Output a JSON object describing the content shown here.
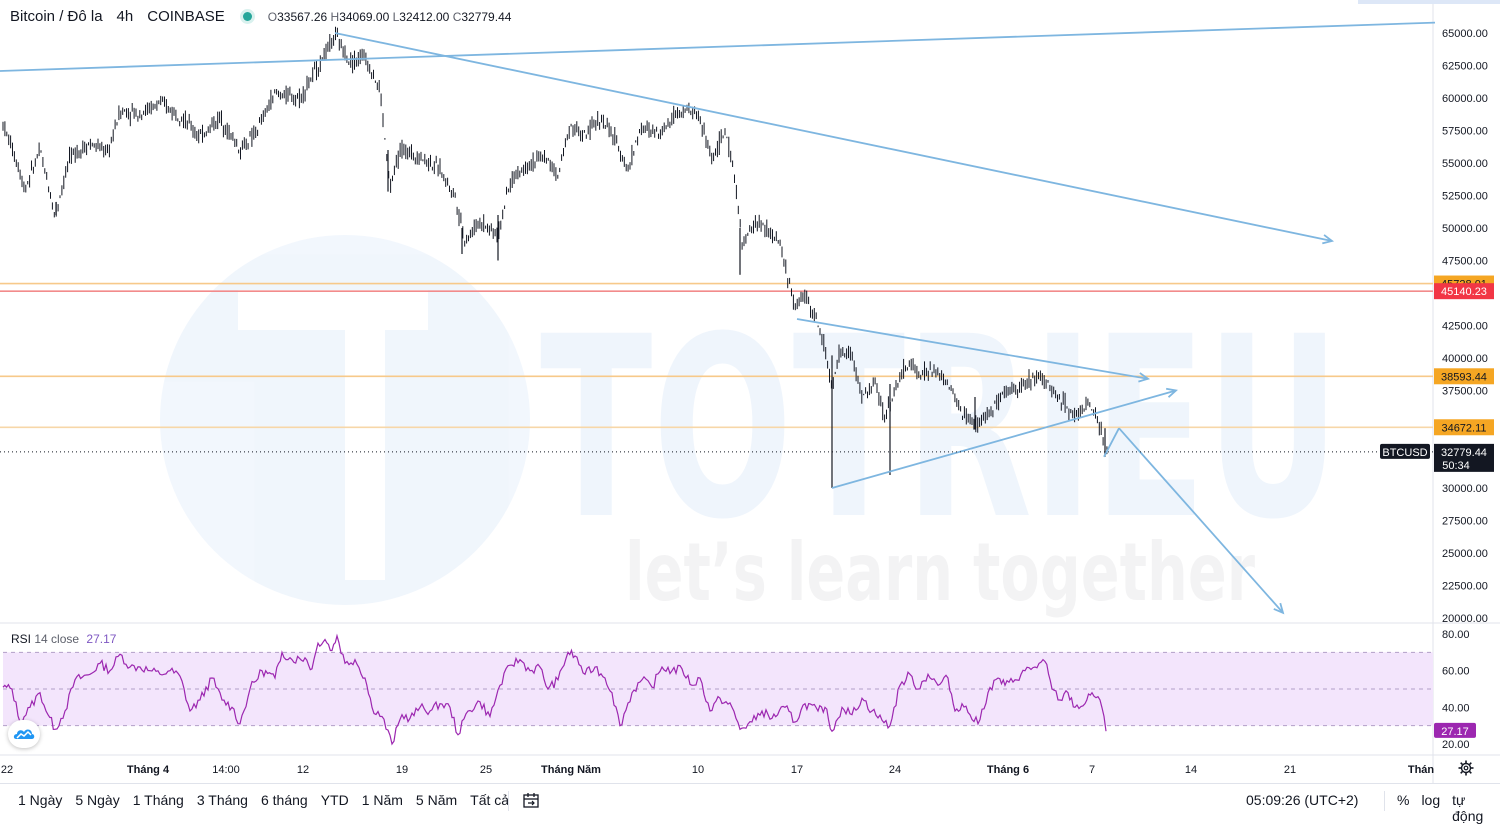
{
  "header": {
    "symbol": "Bitcoin / Đô la",
    "interval": "4h",
    "exchange": "COINBASE",
    "open_label": "O",
    "open": "33567.26",
    "high_label": "H",
    "high": "34069.00",
    "low_label": "L",
    "low": "32412.00",
    "close_label": "C",
    "close": "32779.44"
  },
  "watermark": {
    "brand": "TOTRIEU",
    "slogan": "let’s learn together"
  },
  "price_axis": {
    "ticks": [
      "65000.00",
      "62500.00",
      "60000.00",
      "57500.00",
      "55000.00",
      "52500.00",
      "50000.00",
      "47500.00",
      "42500.00",
      "40000.00",
      "37500.00",
      "30000.00",
      "27500.00",
      "25000.00",
      "22500.00",
      "20000.00"
    ],
    "current_symbol": "BTCUSD",
    "current_price": "32779.44",
    "countdown": "50:34"
  },
  "levels": [
    {
      "price": 45728.01,
      "label": "45728.01",
      "color": "#f5a623",
      "line": "#f7c98a"
    },
    {
      "price": 45140.23,
      "label": "45140.23",
      "color": "#f23645",
      "line": "#f28b8b"
    },
    {
      "price": 38593.44,
      "label": "38593.44",
      "color": "#f5a623",
      "line": "#f7c98a"
    },
    {
      "price": 34672.11,
      "label": "34672.11",
      "color": "#f5a623",
      "line": "#f7d7a8"
    }
  ],
  "time_axis": {
    "labels": [
      {
        "text": "22",
        "bold": false
      },
      {
        "text": "Tháng 4",
        "bold": true
      },
      {
        "text": "14:00",
        "bold": false
      },
      {
        "text": "12",
        "bold": false
      },
      {
        "text": "19",
        "bold": false
      },
      {
        "text": "25",
        "bold": false
      },
      {
        "text": "Tháng Năm",
        "bold": true
      },
      {
        "text": "10",
        "bold": false
      },
      {
        "text": "17",
        "bold": false
      },
      {
        "text": "24",
        "bold": false
      },
      {
        "text": "Tháng 6",
        "bold": true
      },
      {
        "text": "7",
        "bold": false
      },
      {
        "text": "14",
        "bold": false
      },
      {
        "text": "21",
        "bold": false
      },
      {
        "text": "Thán",
        "bold": true
      }
    ]
  },
  "rsi": {
    "label": "RSI",
    "params": "14 close",
    "value": "27.17",
    "ticks": [
      "80.00",
      "60.00",
      "40.00",
      "20.00"
    ],
    "upper_band": 70,
    "lower_band": 30,
    "color": "#9c27b0",
    "band_fill": "#f3e5fc"
  },
  "bottom_bar": {
    "ranges": [
      "1 Ngày",
      "5 Ngày",
      "1 Tháng",
      "3 Tháng",
      "6 tháng",
      "YTD",
      "1 Năm",
      "5 Năm",
      "Tất cả"
    ],
    "clock": "05:09:26 (UTC+2)",
    "percent": "%",
    "log": "log",
    "auto": "tự động"
  },
  "chart_data": {
    "type": "candlestick",
    "symbol": "BTCUSD",
    "interval": "4h",
    "ylim": [
      19000,
      67000
    ],
    "price_path": [
      [
        3,
        58000
      ],
      [
        15,
        55500
      ],
      [
        25,
        53000
      ],
      [
        40,
        56000
      ],
      [
        55,
        51000
      ],
      [
        70,
        55500
      ],
      [
        90,
        56500
      ],
      [
        108,
        55800
      ],
      [
        120,
        59000
      ],
      [
        140,
        58800
      ],
      [
        160,
        59600
      ],
      [
        180,
        58700
      ],
      [
        200,
        57000
      ],
      [
        220,
        58500
      ],
      [
        240,
        56000
      ],
      [
        255,
        57200
      ],
      [
        275,
        60400
      ],
      [
        300,
        60000
      ],
      [
        320,
        62700
      ],
      [
        335,
        64800
      ],
      [
        350,
        62800
      ],
      [
        365,
        63200
      ],
      [
        380,
        60600
      ],
      [
        390,
        53000
      ],
      [
        400,
        56000
      ],
      [
        420,
        55500
      ],
      [
        440,
        54500
      ],
      [
        455,
        52500
      ],
      [
        465,
        49000
      ],
      [
        480,
        50500
      ],
      [
        498,
        49500
      ],
      [
        510,
        53500
      ],
      [
        525,
        54800
      ],
      [
        545,
        55500
      ],
      [
        558,
        54000
      ],
      [
        570,
        58000
      ],
      [
        585,
        57000
      ],
      [
        600,
        58500
      ],
      [
        615,
        56800
      ],
      [
        628,
        54500
      ],
      [
        640,
        57600
      ],
      [
        660,
        57400
      ],
      [
        680,
        59200
      ],
      [
        698,
        58800
      ],
      [
        712,
        55300
      ],
      [
        725,
        57400
      ],
      [
        735,
        54000
      ],
      [
        742,
        48500
      ],
      [
        755,
        50500
      ],
      [
        765,
        50000
      ],
      [
        780,
        48800
      ],
      [
        795,
        43800
      ],
      [
        805,
        45000
      ],
      [
        815,
        43200
      ],
      [
        825,
        40800
      ],
      [
        832,
        37500
      ],
      [
        840,
        40500
      ],
      [
        852,
        40200
      ],
      [
        862,
        37000
      ],
      [
        875,
        38000
      ],
      [
        885,
        35500
      ],
      [
        895,
        37600
      ],
      [
        908,
        39600
      ],
      [
        920,
        38800
      ],
      [
        935,
        39000
      ],
      [
        948,
        38000
      ],
      [
        960,
        36000
      ],
      [
        975,
        34800
      ],
      [
        990,
        35800
      ],
      [
        1000,
        36800
      ],
      [
        1012,
        37600
      ],
      [
        1025,
        38000
      ],
      [
        1040,
        38800
      ],
      [
        1052,
        37500
      ],
      [
        1062,
        36800
      ],
      [
        1075,
        35500
      ],
      [
        1088,
        36600
      ],
      [
        1098,
        35000
      ],
      [
        1104,
        33500
      ],
      [
        1108,
        32779
      ]
    ],
    "wicks": [
      [
        56,
        52000,
        51000
      ],
      [
        388,
        56000,
        52800
      ],
      [
        462,
        50000,
        48000
      ],
      [
        498,
        51000,
        47500
      ],
      [
        740,
        50000,
        46400
      ],
      [
        832,
        40200,
        30000
      ],
      [
        890,
        38000,
        31000
      ],
      [
        975,
        37000,
        34500
      ],
      [
        1105,
        34600,
        32400
      ]
    ],
    "trendlines": [
      {
        "name": "long-resistance",
        "p1": [
          -30,
          62000
        ],
        "p2": [
          1435,
          65800
        ],
        "arrow": false
      },
      {
        "name": "descending-resistance",
        "p1": [
          335,
          65000
        ],
        "p2": [
          1332,
          49000
        ],
        "arrow": true
      },
      {
        "name": "triangle-upper",
        "p1": [
          797,
          43000
        ],
        "p2": [
          1148,
          38400
        ],
        "arrow": true
      },
      {
        "name": "triangle-lower",
        "p1": [
          832,
          30000
        ],
        "p2": [
          1176,
          37500
        ],
        "arrow": true
      },
      {
        "name": "forecast-up",
        "p1": [
          1104,
          32400
        ],
        "p2": [
          1119,
          34600
        ],
        "arrow": false
      },
      {
        "name": "forecast-down",
        "p1": [
          1119,
          34600
        ],
        "p2": [
          1283,
          20400
        ],
        "arrow": true
      }
    ],
    "rsi_path": [
      [
        3,
        51
      ],
      [
        12,
        50
      ],
      [
        20,
        32
      ],
      [
        30,
        40
      ],
      [
        40,
        48
      ],
      [
        48,
        36
      ],
      [
        55,
        28
      ],
      [
        65,
        38
      ],
      [
        75,
        55
      ],
      [
        90,
        58
      ],
      [
        100,
        64
      ],
      [
        110,
        60
      ],
      [
        120,
        69
      ],
      [
        130,
        62
      ],
      [
        140,
        62
      ],
      [
        150,
        60
      ],
      [
        160,
        58
      ],
      [
        170,
        60
      ],
      [
        180,
        57
      ],
      [
        190,
        38
      ],
      [
        200,
        44
      ],
      [
        212,
        56
      ],
      [
        222,
        44
      ],
      [
        232,
        40
      ],
      [
        240,
        31
      ],
      [
        250,
        50
      ],
      [
        262,
        60
      ],
      [
        275,
        56
      ],
      [
        282,
        70
      ],
      [
        292,
        66
      ],
      [
        305,
        67
      ],
      [
        312,
        61
      ],
      [
        318,
        75
      ],
      [
        325,
        77
      ],
      [
        332,
        71
      ],
      [
        337,
        79
      ],
      [
        345,
        64
      ],
      [
        355,
        66
      ],
      [
        365,
        56
      ],
      [
        372,
        40
      ],
      [
        382,
        35
      ],
      [
        392,
        20
      ],
      [
        402,
        36
      ],
      [
        410,
        34
      ],
      [
        420,
        40
      ],
      [
        430,
        38
      ],
      [
        440,
        42
      ],
      [
        450,
        40
      ],
      [
        458,
        25
      ],
      [
        468,
        38
      ],
      [
        480,
        43
      ],
      [
        490,
        35
      ],
      [
        500,
        52
      ],
      [
        510,
        63
      ],
      [
        520,
        66
      ],
      [
        530,
        60
      ],
      [
        540,
        62
      ],
      [
        548,
        50
      ],
      [
        558,
        55
      ],
      [
        568,
        70
      ],
      [
        575,
        68
      ],
      [
        585,
        58
      ],
      [
        595,
        62
      ],
      [
        605,
        56
      ],
      [
        612,
        48
      ],
      [
        620,
        30
      ],
      [
        632,
        48
      ],
      [
        642,
        55
      ],
      [
        652,
        51
      ],
      [
        662,
        62
      ],
      [
        672,
        60
      ],
      [
        682,
        61
      ],
      [
        692,
        52
      ],
      [
        700,
        56
      ],
      [
        710,
        38
      ],
      [
        720,
        45
      ],
      [
        732,
        40
      ],
      [
        740,
        28
      ],
      [
        752,
        32
      ],
      [
        762,
        38
      ],
      [
        772,
        34
      ],
      [
        785,
        40
      ],
      [
        795,
        32
      ],
      [
        805,
        42
      ],
      [
        818,
        38
      ],
      [
        825,
        40
      ],
      [
        832,
        27
      ],
      [
        842,
        40
      ],
      [
        852,
        36
      ],
      [
        862,
        45
      ],
      [
        872,
        38
      ],
      [
        882,
        33
      ],
      [
        890,
        30
      ],
      [
        900,
        52
      ],
      [
        910,
        58
      ],
      [
        918,
        50
      ],
      [
        928,
        58
      ],
      [
        938,
        52
      ],
      [
        948,
        56
      ],
      [
        955,
        38
      ],
      [
        962,
        42
      ],
      [
        970,
        36
      ],
      [
        978,
        31
      ],
      [
        988,
        48
      ],
      [
        998,
        56
      ],
      [
        1005,
        52
      ],
      [
        1015,
        55
      ],
      [
        1025,
        60
      ],
      [
        1035,
        62
      ],
      [
        1045,
        65
      ],
      [
        1052,
        50
      ],
      [
        1060,
        44
      ],
      [
        1068,
        48
      ],
      [
        1075,
        40
      ],
      [
        1085,
        42
      ],
      [
        1092,
        48
      ],
      [
        1100,
        44
      ],
      [
        1106,
        27
      ]
    ]
  }
}
